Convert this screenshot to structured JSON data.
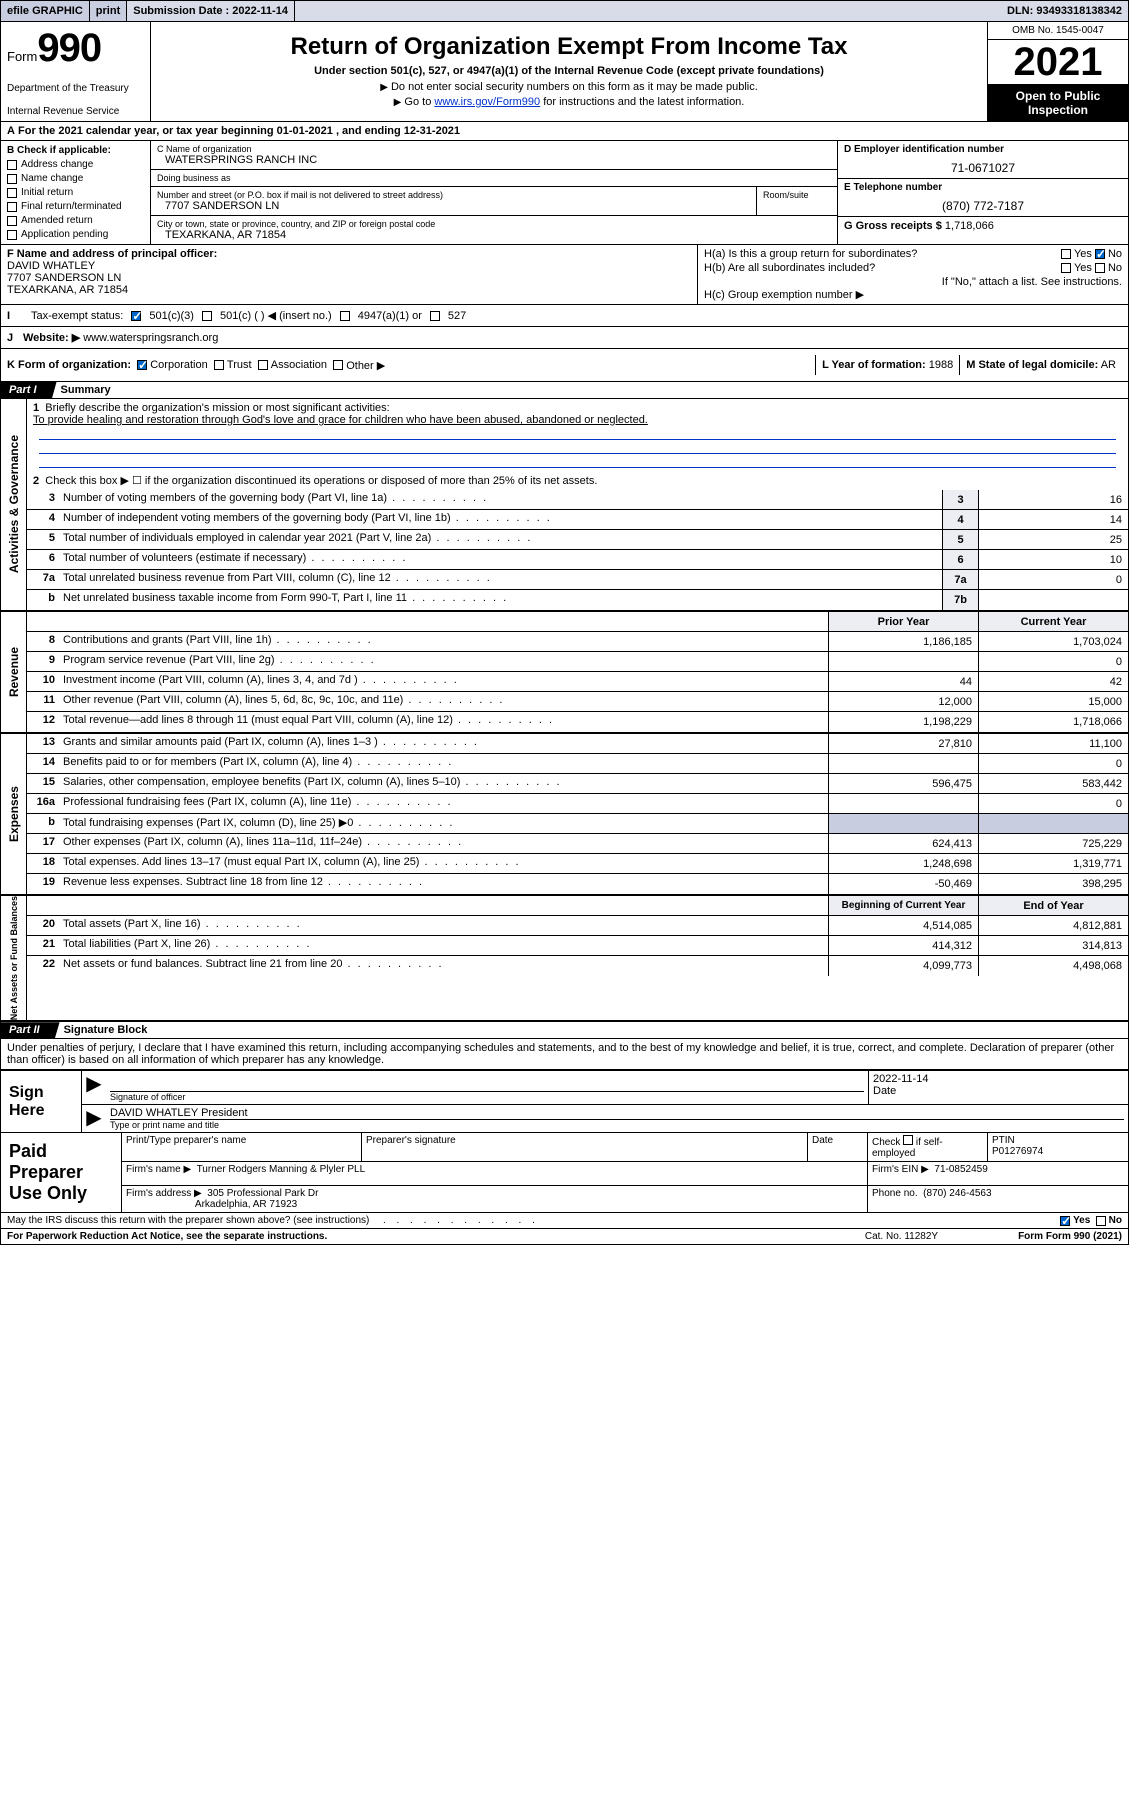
{
  "topbar": {
    "efile": "efile GRAPHIC",
    "print": "print",
    "sub_label": "Submission Date :",
    "sub_date": "2022-11-14",
    "dln_label": "DLN:",
    "dln": "93493318138342"
  },
  "header": {
    "form_word": "Form",
    "form_num": "990",
    "dept": "Department of the Treasury",
    "irs": "Internal Revenue Service",
    "title": "Return of Organization Exempt From Income Tax",
    "sub": "Under section 501(c), 527, or 4947(a)(1) of the Internal Revenue Code (except private foundations)",
    "note1": "Do not enter social security numbers on this form as it may be made public.",
    "note2_a": "Go to ",
    "note2_link": "www.irs.gov/Form990",
    "note2_b": " for instructions and the latest information.",
    "omb": "OMB No. 1545-0047",
    "year": "2021",
    "open1": "Open to Public",
    "open2": "Inspection"
  },
  "rowA": "For the 2021 calendar year, or tax year beginning 01-01-2021   , and ending 12-31-2021",
  "colB": {
    "hdr": "B Check if applicable:",
    "items": [
      "Address change",
      "Name change",
      "Initial return",
      "Final return/terminated",
      "Amended return",
      "Application pending"
    ]
  },
  "colC": {
    "name_lbl": "C Name of organization",
    "name": "WATERSPRINGS RANCH INC",
    "dba_lbl": "Doing business as",
    "dba": "",
    "street_lbl": "Number and street (or P.O. box if mail is not delivered to street address)",
    "street": "7707 SANDERSON LN",
    "suite_lbl": "Room/suite",
    "city_lbl": "City or town, state or province, country, and ZIP or foreign postal code",
    "city": "TEXARKANA, AR  71854"
  },
  "colD": {
    "ein_lbl": "D Employer identification number",
    "ein": "71-0671027",
    "tel_lbl": "E Telephone number",
    "tel": "(870) 772-7187",
    "gross_lbl": "G Gross receipts $",
    "gross": "1,718,066"
  },
  "rowF": {
    "lbl": "F Name and address of principal officer:",
    "name": "DAVID WHATLEY",
    "addr1": "7707 SANDERSON LN",
    "addr2": "TEXARKANA, AR  71854"
  },
  "rowH": {
    "a": "H(a)  Is this a group return for subordinates?",
    "b": "H(b)  Are all subordinates included?",
    "note": "If \"No,\" attach a list. See instructions.",
    "c": "H(c)  Group exemption number ▶",
    "yes": "Yes",
    "no": "No"
  },
  "rowI": {
    "lbl": "Tax-exempt status:",
    "o1": "501(c)(3)",
    "o2": "501(c) (  ) ◀ (insert no.)",
    "o3": "4947(a)(1) or",
    "o4": "527"
  },
  "rowJ": {
    "lbl": "Website: ▶",
    "val": "www.waterspringsranch.org"
  },
  "rowK": {
    "lbl": "K Form of organization:",
    "o1": "Corporation",
    "o2": "Trust",
    "o3": "Association",
    "o4": "Other ▶",
    "L_lbl": "L Year of formation:",
    "L_val": "1988",
    "M_lbl": "M State of legal domicile:",
    "M_val": "AR"
  },
  "part1": {
    "tag": "Part I",
    "title": "Summary"
  },
  "sect_gov": {
    "label": "Activities & Governance",
    "l1a": "Briefly describe the organization's mission or most significant activities:",
    "l1b": "To provide healing and restoration through God's love and grace for children who have been abused, abandoned or neglected.",
    "l2": "Check this box ▶ ☐  if the organization discontinued its operations or disposed of more than 25% of its net assets.",
    "rows": [
      {
        "n": "3",
        "t": "Number of voting members of the governing body (Part VI, line 1a)",
        "box": "3",
        "v": "16"
      },
      {
        "n": "4",
        "t": "Number of independent voting members of the governing body (Part VI, line 1b)",
        "box": "4",
        "v": "14"
      },
      {
        "n": "5",
        "t": "Total number of individuals employed in calendar year 2021 (Part V, line 2a)",
        "box": "5",
        "v": "25"
      },
      {
        "n": "6",
        "t": "Total number of volunteers (estimate if necessary)",
        "box": "6",
        "v": "10"
      },
      {
        "n": "7a",
        "t": "Total unrelated business revenue from Part VIII, column (C), line 12",
        "box": "7a",
        "v": "0"
      },
      {
        "n": "b",
        "t": "Net unrelated business taxable income from Form 990-T, Part I, line 11",
        "box": "7b",
        "v": ""
      }
    ]
  },
  "two_col_hdr": {
    "prior": "Prior Year",
    "curr": "Current Year"
  },
  "sect_rev": {
    "label": "Revenue",
    "rows": [
      {
        "n": "8",
        "t": "Contributions and grants (Part VIII, line 1h)",
        "p": "1,186,185",
        "c": "1,703,024"
      },
      {
        "n": "9",
        "t": "Program service revenue (Part VIII, line 2g)",
        "p": "",
        "c": "0"
      },
      {
        "n": "10",
        "t": "Investment income (Part VIII, column (A), lines 3, 4, and 7d )",
        "p": "44",
        "c": "42"
      },
      {
        "n": "11",
        "t": "Other revenue (Part VIII, column (A), lines 5, 6d, 8c, 9c, 10c, and 11e)",
        "p": "12,000",
        "c": "15,000"
      },
      {
        "n": "12",
        "t": "Total revenue—add lines 8 through 11 (must equal Part VIII, column (A), line 12)",
        "p": "1,198,229",
        "c": "1,718,066"
      }
    ]
  },
  "sect_exp": {
    "label": "Expenses",
    "rows": [
      {
        "n": "13",
        "t": "Grants and similar amounts paid (Part IX, column (A), lines 1–3 )",
        "p": "27,810",
        "c": "11,100"
      },
      {
        "n": "14",
        "t": "Benefits paid to or for members (Part IX, column (A), line 4)",
        "p": "",
        "c": "0"
      },
      {
        "n": "15",
        "t": "Salaries, other compensation, employee benefits (Part IX, column (A), lines 5–10)",
        "p": "596,475",
        "c": "583,442"
      },
      {
        "n": "16a",
        "t": "Professional fundraising fees (Part IX, column (A), line 11e)",
        "p": "",
        "c": "0"
      },
      {
        "n": "b",
        "t": "Total fundraising expenses (Part IX, column (D), line 25) ▶0",
        "p": "GREY",
        "c": "GREY"
      },
      {
        "n": "17",
        "t": "Other expenses (Part IX, column (A), lines 11a–11d, 11f–24e)",
        "p": "624,413",
        "c": "725,229"
      },
      {
        "n": "18",
        "t": "Total expenses. Add lines 13–17 (must equal Part IX, column (A), line 25)",
        "p": "1,248,698",
        "c": "1,319,771"
      },
      {
        "n": "19",
        "t": "Revenue less expenses. Subtract line 18 from line 12",
        "p": "-50,469",
        "c": "398,295"
      }
    ]
  },
  "two_col_hdr2": {
    "prior": "Beginning of Current Year",
    "curr": "End of Year"
  },
  "sect_net": {
    "label": "Net Assets or Fund Balances",
    "rows": [
      {
        "n": "20",
        "t": "Total assets (Part X, line 16)",
        "p": "4,514,085",
        "c": "4,812,881"
      },
      {
        "n": "21",
        "t": "Total liabilities (Part X, line 26)",
        "p": "414,312",
        "c": "314,813"
      },
      {
        "n": "22",
        "t": "Net assets or fund balances. Subtract line 21 from line 20",
        "p": "4,099,773",
        "c": "4,498,068"
      }
    ]
  },
  "part2": {
    "tag": "Part II",
    "title": "Signature Block"
  },
  "penalties": "Under penalties of perjury, I declare that I have examined this return, including accompanying schedules and statements, and to the best of my knowledge and belief, it is true, correct, and complete. Declaration of preparer (other than officer) is based on all information of which preparer has any knowledge.",
  "sign": {
    "left1": "Sign",
    "left2": "Here",
    "sig_lbl": "Signature of officer",
    "date": "2022-11-14",
    "date_lbl": "Date",
    "name": "DAVID WHATLEY President",
    "name_lbl": "Type or print name and title"
  },
  "prep": {
    "left1": "Paid",
    "left2": "Preparer",
    "left3": "Use Only",
    "h1": "Print/Type preparer's name",
    "h2": "Preparer's signature",
    "h3": "Date",
    "h4a": "Check",
    "h4b": "if self-employed",
    "h5": "PTIN",
    "ptin": "P01276974",
    "firm_lbl": "Firm's name    ▶",
    "firm": "Turner Rodgers Manning & Plyler PLL",
    "ein_lbl": "Firm's EIN ▶",
    "ein": "71-0852459",
    "addr_lbl": "Firm's address ▶",
    "addr1": "305 Professional Park Dr",
    "addr2": "Arkadelphia, AR  71923",
    "ph_lbl": "Phone no.",
    "ph": "(870) 246-4563"
  },
  "footer": {
    "q": "May the IRS discuss this return with the preparer shown above? (see instructions)",
    "yes": "Yes",
    "no": "No",
    "pra": "For Paperwork Reduction Act Notice, see the separate instructions.",
    "cat": "Cat. No. 11282Y",
    "form": "Form 990 (2021)"
  }
}
